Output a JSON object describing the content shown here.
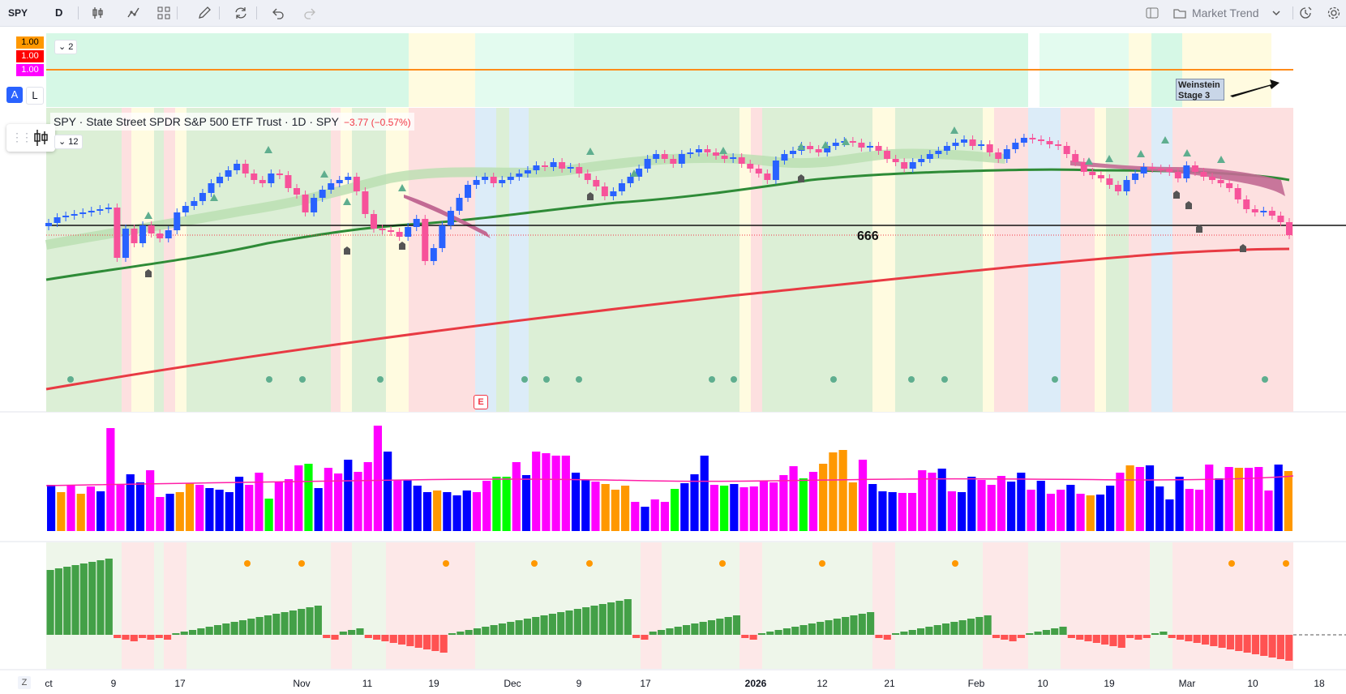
{
  "toolbar": {
    "symbol": "SPY",
    "interval": "D",
    "layout_name": "Market Trend"
  },
  "top_pane": {
    "collapse_count": "2",
    "values": [
      {
        "text": "1.00",
        "color": "#ff9800"
      },
      {
        "text": "1.00",
        "color": "#ff0000"
      },
      {
        "text": "1.00",
        "color": "#ff00ff"
      }
    ],
    "auto_label": "A",
    "log_label": "L",
    "annotation_line1": "Weinstein",
    "annotation_line2": "Stage 3"
  },
  "main_pane": {
    "title": "SPY · State Street SPDR S&P 500 ETF Trust · 1D · SPY",
    "change": "−3.77 (−0.57%)",
    "collapse_count": "12",
    "level_label": "666",
    "earnings_label": "E"
  },
  "colors": {
    "up": "#2962ff",
    "down": "#f7529a",
    "ma_green": "#2e8b37",
    "ma_red": "#e83a43",
    "vol_blue": "#0000ff",
    "vol_magenta": "#ff00ff",
    "vol_orange": "#ff9800",
    "vol_green": "#00ff00"
  },
  "x_axis": [
    {
      "text": "ct",
      "x": 60
    },
    {
      "text": "9",
      "x": 140
    },
    {
      "text": "17",
      "x": 222
    },
    {
      "text": "Nov",
      "x": 372
    },
    {
      "text": "11",
      "x": 453
    },
    {
      "text": "19",
      "x": 535
    },
    {
      "text": "Dec",
      "x": 632
    },
    {
      "text": "9",
      "x": 714
    },
    {
      "text": "17",
      "x": 796
    },
    {
      "text": "2026",
      "x": 932,
      "bold": true
    },
    {
      "text": "12",
      "x": 1014
    },
    {
      "text": "21",
      "x": 1097
    },
    {
      "text": "Feb",
      "x": 1204
    },
    {
      "text": "10",
      "x": 1286
    },
    {
      "text": "19",
      "x": 1368
    },
    {
      "text": "Mar",
      "x": 1464
    },
    {
      "text": "10",
      "x": 1545
    },
    {
      "text": "18",
      "x": 1627
    }
  ]
}
